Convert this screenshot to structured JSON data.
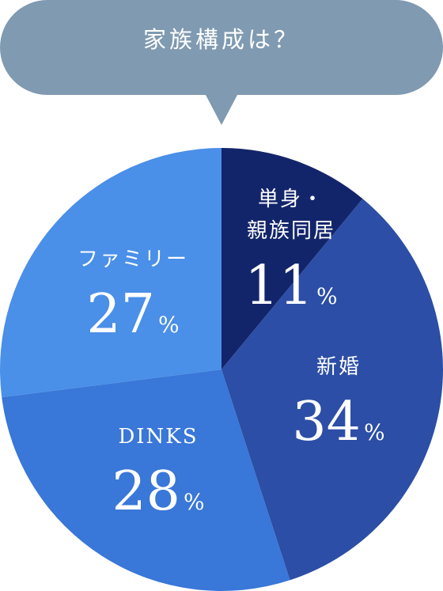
{
  "header": {
    "title": "家族構成は？"
  },
  "colors": {
    "bubble": "#7f9ab1",
    "text": "#ffffff"
  },
  "chart_data": {
    "type": "pie",
    "title": "家族構成は？",
    "start_angle_deg": 0,
    "direction": "clockwise",
    "slices": [
      {
        "label_lines": [
          "単身・",
          "親族同居"
        ],
        "value": 11,
        "unit": "%",
        "color": "#13256a"
      },
      {
        "label_lines": [
          "新婚"
        ],
        "value": 34,
        "unit": "%",
        "color": "#2c4ea6"
      },
      {
        "label_lines": [
          "DINKS"
        ],
        "value": 28,
        "unit": "%",
        "color": "#3977d8"
      },
      {
        "label_lines": [
          "ファミリー"
        ],
        "value": 27,
        "unit": "%",
        "color": "#4a8fe8"
      }
    ]
  }
}
